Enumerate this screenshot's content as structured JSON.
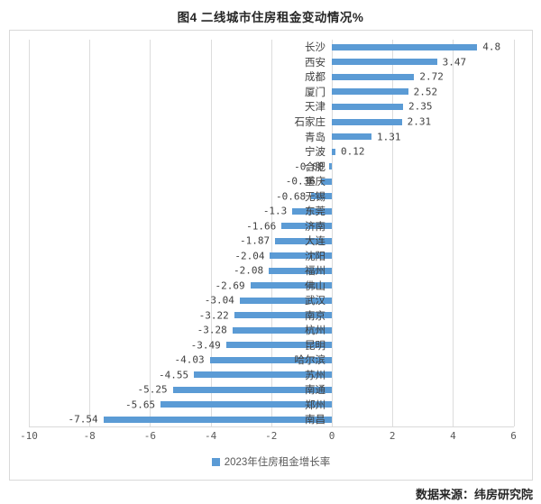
{
  "page": {
    "title": "图4  二线城市住房租金变动情况%",
    "source_note": "数据来源：纬房研究院"
  },
  "legend": {
    "label": "2023年住房租金增长率",
    "marker_color": "#5b9bd5"
  },
  "colors": {
    "bar": "#5b9bd5",
    "grid": "#dcdcdc",
    "frame_border": "#d9d9d9",
    "tick_text": "#595959",
    "label_text": "#3f3f3f",
    "title_text": "#262626"
  },
  "chart_data": {
    "type": "bar",
    "orientation": "horizontal",
    "title": "图4  二线城市住房租金变动情况%",
    "legend_entries": [
      "2023年住房租金增长率"
    ],
    "legend_position": "bottom",
    "categories": [
      "长沙",
      "西安",
      "成都",
      "厦门",
      "天津",
      "石家庄",
      "青岛",
      "宁波",
      "合肥",
      "重庆",
      "无锡",
      "东莞",
      "济南",
      "大连",
      "沈阳",
      "福州",
      "佛山",
      "武汉",
      "南京",
      "杭州",
      "昆明",
      "哈尔滨",
      "苏州",
      "南通",
      "郑州",
      "南昌"
    ],
    "values": [
      4.8,
      3.47,
      2.72,
      2.52,
      2.35,
      2.31,
      1.31,
      0.12,
      -0.08,
      -0.36,
      -0.68,
      -1.3,
      -1.66,
      -1.87,
      -2.04,
      -2.08,
      -2.69,
      -3.04,
      -3.22,
      -3.28,
      -3.49,
      -4.03,
      -4.55,
      -5.25,
      -5.65,
      -7.54
    ],
    "value_labels": [
      "4.8",
      "3.47",
      "2.72",
      "2.52",
      "2.35",
      "2.31",
      "1.31",
      "0.12",
      "-0.08",
      "-0.36",
      "-0.68",
      "-1.3",
      "-1.66",
      "-1.87",
      "-2.04",
      "-2.08",
      "-2.69",
      "-3.04",
      "-3.22",
      "-3.28",
      "-3.49",
      "-4.03",
      "-4.55",
      "-5.25",
      "-5.65",
      "-7.54"
    ],
    "xlabel": "",
    "ylabel": "",
    "xlim": [
      -10,
      6
    ],
    "xticks": [
      -10,
      -8,
      -6,
      -4,
      -2,
      0,
      2,
      4,
      6
    ],
    "grid": true,
    "bar_color": "#5b9bd5"
  }
}
